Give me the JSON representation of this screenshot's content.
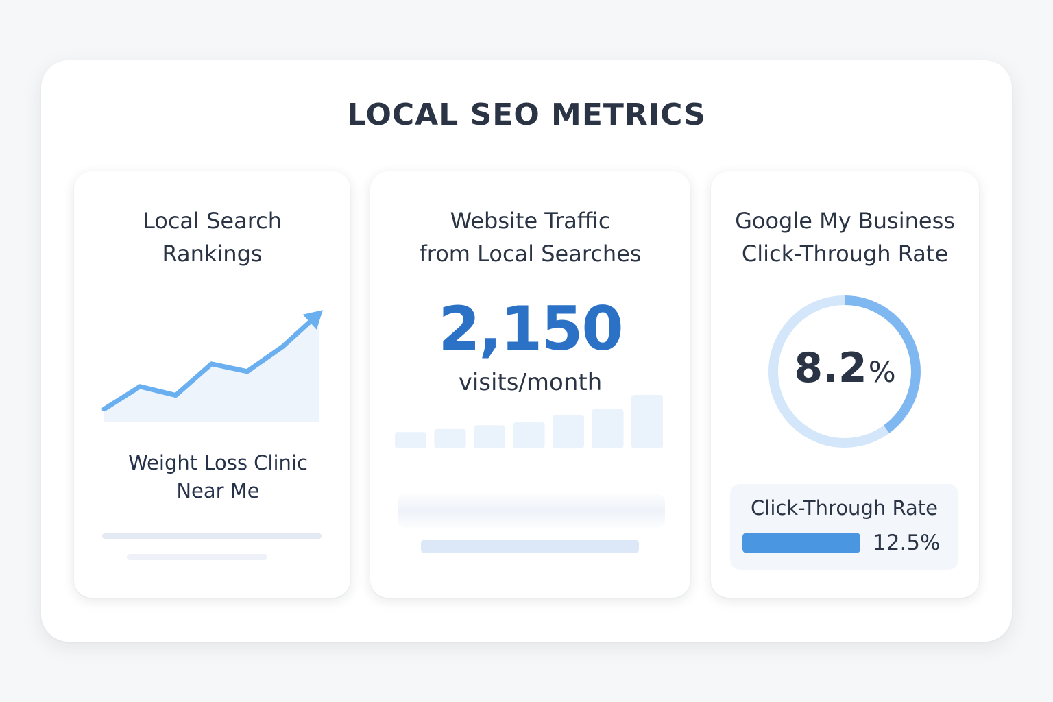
{
  "page": {
    "title": "LOCAL SEO METRICS"
  },
  "colors": {
    "accent": "#2b72c6",
    "chart_line": "#6aafef",
    "chart_fill": "#eef4fc",
    "bar_fill": "#eaf2fc",
    "donut_track": "#d3e6fa",
    "donut_arc": "#7fb8f0",
    "progress_fill": "#4a96e0",
    "text_dark": "#2a3444"
  },
  "cards": {
    "rankings": {
      "title_line1": "Local Search",
      "title_line2": "Rankings",
      "keyword_line1": "Weight Loss Clinic",
      "keyword_line2": "Near Me",
      "trend_icon": "up-arrow-icon"
    },
    "traffic": {
      "title_line1": "Website Traffic",
      "title_line2": "from Local Searches",
      "value": "2,150",
      "unit": "visits/month"
    },
    "gmb": {
      "title_line1": "Google My Business",
      "title_line2": "Click-Through Rate",
      "donut_value": "8.2",
      "donut_unit": "%",
      "donut_fraction": 0.4,
      "ctr_label": "Click-Through Rate",
      "ctr_value": "12.5%",
      "ctr_fill_fraction": 1.0
    }
  },
  "chart_data": [
    {
      "type": "line",
      "x": [
        1,
        2,
        3,
        4,
        5,
        6,
        7
      ],
      "series": [
        {
          "values": [
            1.0,
            2.8,
            2.1,
            4.6,
            4.0,
            6.0,
            8.6
          ]
        }
      ],
      "xlabel": "",
      "ylabel": "",
      "grid": false,
      "legend": "none"
    },
    {
      "type": "bar",
      "categories": [
        "1",
        "2",
        "3",
        "4",
        "5",
        "6",
        "7"
      ],
      "values": [
        22,
        26,
        31,
        35,
        45,
        53,
        72
      ],
      "xlabel": "",
      "ylabel": "",
      "grid": false,
      "legend": "none"
    }
  ]
}
